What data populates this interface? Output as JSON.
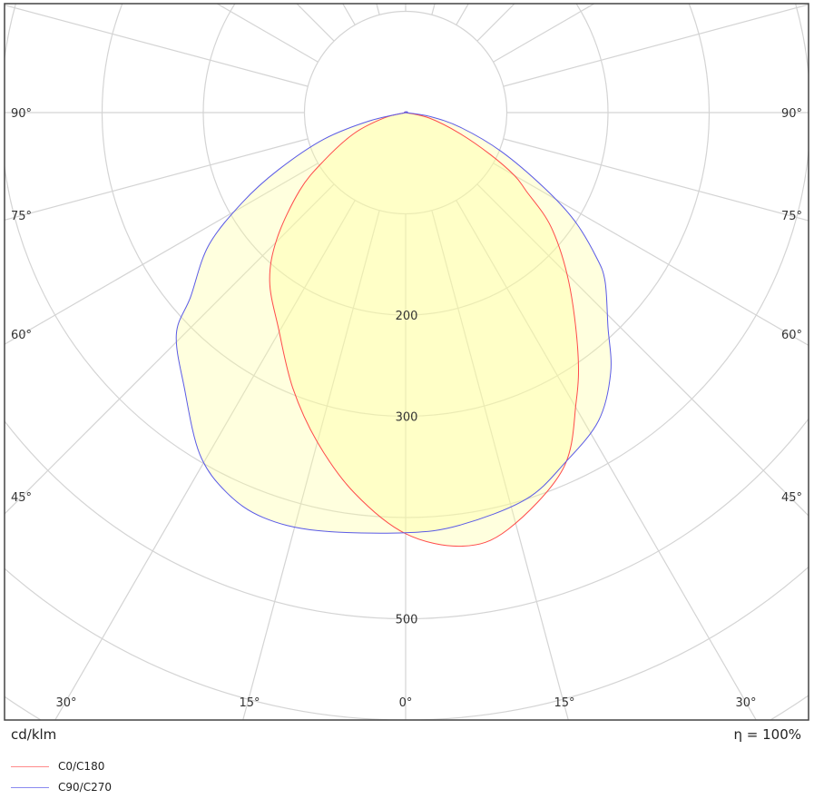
{
  "chart_data": {
    "type": "polar",
    "unit_label": "cd/klm",
    "efficiency_label": "η = 100%",
    "radial_rings": [
      100,
      200,
      300,
      400,
      500,
      600,
      700
    ],
    "radial_tick_labels": [
      "200",
      "300",
      "500"
    ],
    "radial_tick_values": [
      200,
      300,
      500
    ],
    "angle_step_deg": 15,
    "angle_labels": {
      "side": [
        "90°",
        "75°",
        "60°",
        "45°"
      ],
      "bottom": [
        "30°",
        "15°",
        "0°",
        "15°",
        "30°"
      ]
    },
    "grid": true,
    "legend_placement": "bottom-left",
    "series": [
      {
        "name": "C0/C180",
        "color": "#ff4a4a",
        "right_half": [
          [
            0,
            416
          ],
          [
            7.5,
            432
          ],
          [
            13.8,
            424
          ],
          [
            23.8,
            385
          ],
          [
            30.5,
            332
          ],
          [
            35.8,
            291
          ],
          [
            44,
            232
          ],
          [
            51.8,
            183
          ],
          [
            57,
            142
          ],
          [
            60,
            124
          ],
          [
            63.7,
            93
          ],
          [
            69,
            57
          ],
          [
            77,
            24
          ],
          [
            90,
            0
          ]
        ],
        "left_half": [
          [
            0,
            416
          ],
          [
            7.7,
            379
          ],
          [
            15,
            337
          ],
          [
            22.3,
            294
          ],
          [
            30.4,
            248
          ],
          [
            38.9,
            214
          ],
          [
            45.6,
            178
          ],
          [
            53.7,
            130
          ],
          [
            59.5,
            94
          ],
          [
            68,
            55
          ],
          [
            76,
            22
          ],
          [
            90,
            0
          ]
        ]
      },
      {
        "name": "C90/C270",
        "color": "#5a5ae6",
        "right_half": [
          [
            0,
            415
          ],
          [
            7.5,
            411
          ],
          [
            17.3,
            400
          ],
          [
            24.5,
            380
          ],
          [
            32.1,
            359
          ],
          [
            38.3,
            327
          ],
          [
            43.4,
            291
          ],
          [
            49.8,
            258
          ],
          [
            52.9,
            236
          ],
          [
            57.4,
            198
          ],
          [
            61.5,
            156
          ],
          [
            67.9,
            102
          ],
          [
            75,
            56
          ],
          [
            81,
            24
          ],
          [
            90,
            0
          ]
        ],
        "left_half": [
          [
            0,
            416
          ],
          [
            11.9,
            422
          ],
          [
            19.4,
            424
          ],
          [
            25.2,
            415
          ],
          [
            31.1,
            394
          ],
          [
            38.8,
            349
          ],
          [
            46,
            315
          ],
          [
            49.4,
            280
          ],
          [
            56,
            235
          ],
          [
            61.2,
            184
          ],
          [
            65.8,
            138
          ],
          [
            72,
            85
          ],
          [
            77,
            37
          ],
          [
            90,
            0
          ]
        ]
      }
    ],
    "fill_color": "#ffff99",
    "grid_color": "#d4d4d4"
  }
}
